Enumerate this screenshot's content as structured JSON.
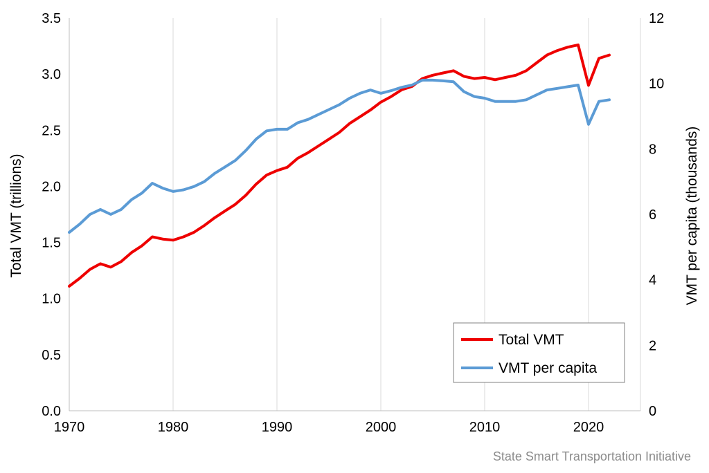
{
  "chart_data": {
    "type": "line",
    "title": "",
    "xlabel": "",
    "ylabel_left": "Total VMT (trillions)",
    "ylabel_right": "VMT per capita (thousands)",
    "xlim": [
      1970,
      2025
    ],
    "ylim_left": [
      0,
      3.5
    ],
    "ylim_right": [
      0,
      12
    ],
    "x_ticks": [
      1970,
      1980,
      1990,
      2000,
      2010,
      2020
    ],
    "y_left_ticks": [
      "0.0",
      "0.5",
      "1.0",
      "1.5",
      "2.0",
      "2.5",
      "3.0",
      "3.5"
    ],
    "y_right_ticks": [
      "0",
      "2",
      "4",
      "6",
      "8",
      "10",
      "12"
    ],
    "grid": "vertical",
    "legend_position": "bottom-right",
    "x": [
      1970,
      1971,
      1972,
      1973,
      1974,
      1975,
      1976,
      1977,
      1978,
      1979,
      1980,
      1981,
      1982,
      1983,
      1984,
      1985,
      1986,
      1987,
      1988,
      1989,
      1990,
      1991,
      1992,
      1993,
      1994,
      1995,
      1996,
      1997,
      1998,
      1999,
      2000,
      2001,
      2002,
      2003,
      2004,
      2005,
      2006,
      2007,
      2008,
      2009,
      2010,
      2011,
      2012,
      2013,
      2014,
      2015,
      2016,
      2017,
      2018,
      2019,
      2020,
      2021,
      2022
    ],
    "series": [
      {
        "name": "Total VMT",
        "axis": "left",
        "color": "#ee0000",
        "values": [
          1.11,
          1.18,
          1.26,
          1.31,
          1.28,
          1.33,
          1.41,
          1.47,
          1.55,
          1.53,
          1.52,
          1.55,
          1.59,
          1.65,
          1.72,
          1.78,
          1.84,
          1.92,
          2.02,
          2.1,
          2.14,
          2.17,
          2.25,
          2.3,
          2.36,
          2.42,
          2.48,
          2.56,
          2.62,
          2.68,
          2.75,
          2.8,
          2.86,
          2.89,
          2.96,
          2.99,
          3.01,
          3.03,
          2.98,
          2.96,
          2.97,
          2.95,
          2.97,
          2.99,
          3.03,
          3.1,
          3.17,
          3.21,
          3.24,
          3.26,
          2.9,
          3.14,
          3.17
        ]
      },
      {
        "name": "VMT per capita",
        "axis": "right",
        "color": "#5b9bd5",
        "values": [
          5.45,
          5.7,
          6.0,
          6.15,
          6.0,
          6.15,
          6.45,
          6.65,
          6.95,
          6.8,
          6.7,
          6.75,
          6.85,
          7.0,
          7.25,
          7.45,
          7.65,
          7.95,
          8.3,
          8.55,
          8.6,
          8.6,
          8.8,
          8.9,
          9.05,
          9.2,
          9.35,
          9.55,
          9.7,
          9.8,
          9.7,
          9.78,
          9.88,
          9.95,
          10.1,
          10.1,
          10.08,
          10.05,
          9.75,
          9.6,
          9.55,
          9.45,
          9.45,
          9.45,
          9.5,
          9.65,
          9.8,
          9.85,
          9.9,
          9.95,
          8.75,
          9.45,
          9.5
        ]
      }
    ],
    "annotations": [
      "State Smart Transportation Initiative"
    ]
  }
}
